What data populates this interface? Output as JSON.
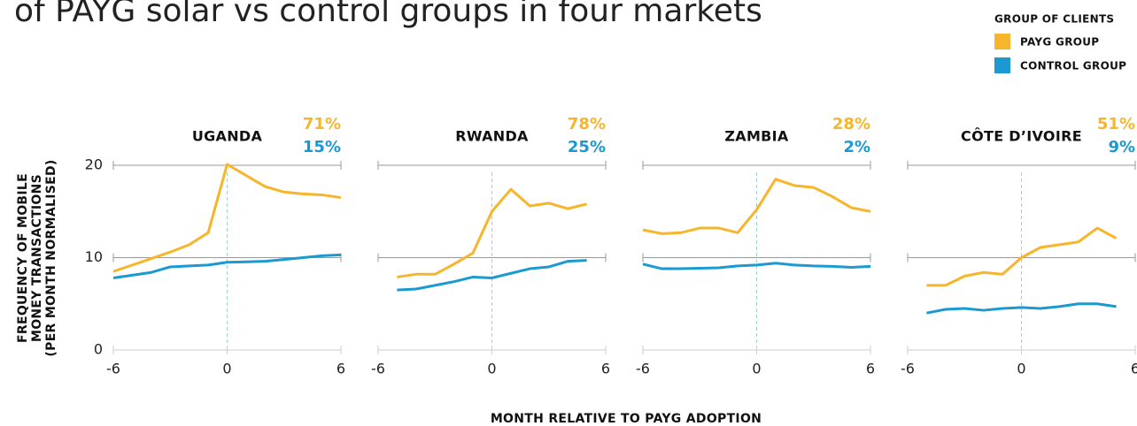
{
  "title": "of PAYG solar vs control groups in four markets",
  "legend_title": "GROUP OF CLIENTS",
  "y_label": [
    "FREQUENCY OF MOBILE",
    "MONEY TRANSACTIONS",
    "(PER MONTH NORMALISED)"
  ],
  "x_label": "MONTH RELATIVE TO PAYG ADOPTION",
  "chart_data": [
    {
      "type": "line",
      "title": "UGANDA",
      "annotations": [
        "71%",
        "15%"
      ],
      "x": [
        -6,
        -5,
        -4,
        -3,
        -2,
        -1,
        0,
        1,
        2,
        3,
        4,
        5,
        6
      ],
      "series": [
        {
          "name": "PAYG GROUP",
          "color": "#f7b52b",
          "values": [
            8.5,
            9.2,
            9.9,
            10.6,
            11.4,
            12.7,
            20.1,
            18.9,
            17.7,
            17.1,
            16.9,
            16.8,
            16.5
          ]
        },
        {
          "name": "CONTROL GROUP",
          "color": "#1a9ad0",
          "values": [
            7.8,
            8.1,
            8.4,
            9.0,
            9.1,
            9.2,
            9.5,
            9.55,
            9.6,
            9.8,
            10.0,
            10.2,
            10.3
          ]
        }
      ],
      "xlim": [
        -6,
        6
      ],
      "ylim": [
        0,
        20
      ],
      "xticks": [
        -6,
        0,
        6
      ],
      "yticks": [
        0,
        10,
        20
      ]
    },
    {
      "type": "line",
      "title": "RWANDA",
      "annotations": [
        "78%",
        "25%"
      ],
      "x": [
        -5,
        -4,
        -3,
        -2,
        -1,
        0,
        1,
        2,
        3,
        4,
        5
      ],
      "series": [
        {
          "color": "#f7b52b",
          "values": [
            7.9,
            8.2,
            8.2,
            9.3,
            10.5,
            15.0,
            17.4,
            15.6,
            15.9,
            15.3,
            15.8
          ]
        },
        {
          "color": "#1a9ad0",
          "values": [
            6.5,
            6.6,
            7.0,
            7.4,
            7.9,
            7.8,
            8.3,
            8.8,
            9.0,
            9.6,
            9.7
          ]
        }
      ],
      "xlim": [
        -6,
        6
      ],
      "ylim": [
        0,
        20
      ],
      "xticks": [
        -6,
        0,
        6
      ],
      "yticks": [
        0,
        10,
        20
      ]
    },
    {
      "type": "line",
      "title": "ZAMBIA",
      "annotations": [
        "28%",
        "2%"
      ],
      "x": [
        -6,
        -5,
        -4,
        -3,
        -2,
        -1,
        0,
        1,
        2,
        3,
        4,
        5,
        6
      ],
      "series": [
        {
          "color": "#f7b52b",
          "values": [
            13.0,
            12.6,
            12.7,
            13.2,
            13.2,
            12.7,
            15.2,
            18.5,
            17.8,
            17.6,
            16.6,
            15.4,
            15.0
          ]
        },
        {
          "color": "#1a9ad0",
          "values": [
            9.3,
            8.8,
            8.8,
            8.85,
            8.9,
            9.1,
            9.2,
            9.4,
            9.2,
            9.1,
            9.05,
            8.95,
            9.05
          ]
        }
      ],
      "xlim": [
        -6,
        6
      ],
      "ylim": [
        0,
        20
      ],
      "xticks": [
        -6,
        0,
        6
      ],
      "yticks": [
        0,
        10,
        20
      ]
    },
    {
      "type": "line",
      "title": "CÔTE D’IVOIRE",
      "annotations": [
        "51%",
        "9%"
      ],
      "x": [
        -5,
        -4,
        -3,
        -2,
        -1,
        0,
        1,
        2,
        3,
        4,
        5
      ],
      "series": [
        {
          "color": "#f7b52b",
          "values": [
            7.0,
            7.0,
            8.0,
            8.4,
            8.2,
            10.0,
            11.1,
            11.4,
            11.7,
            13.2,
            12.1
          ]
        },
        {
          "color": "#1a9ad0",
          "values": [
            4.0,
            4.4,
            4.5,
            4.3,
            4.5,
            4.6,
            4.5,
            4.7,
            5.0,
            5.0,
            4.7
          ]
        }
      ],
      "xlim": [
        -6,
        6
      ],
      "ylim": [
        0,
        20
      ],
      "xticks": [
        -6,
        0,
        6
      ],
      "yticks": [
        0,
        10,
        20
      ]
    }
  ]
}
